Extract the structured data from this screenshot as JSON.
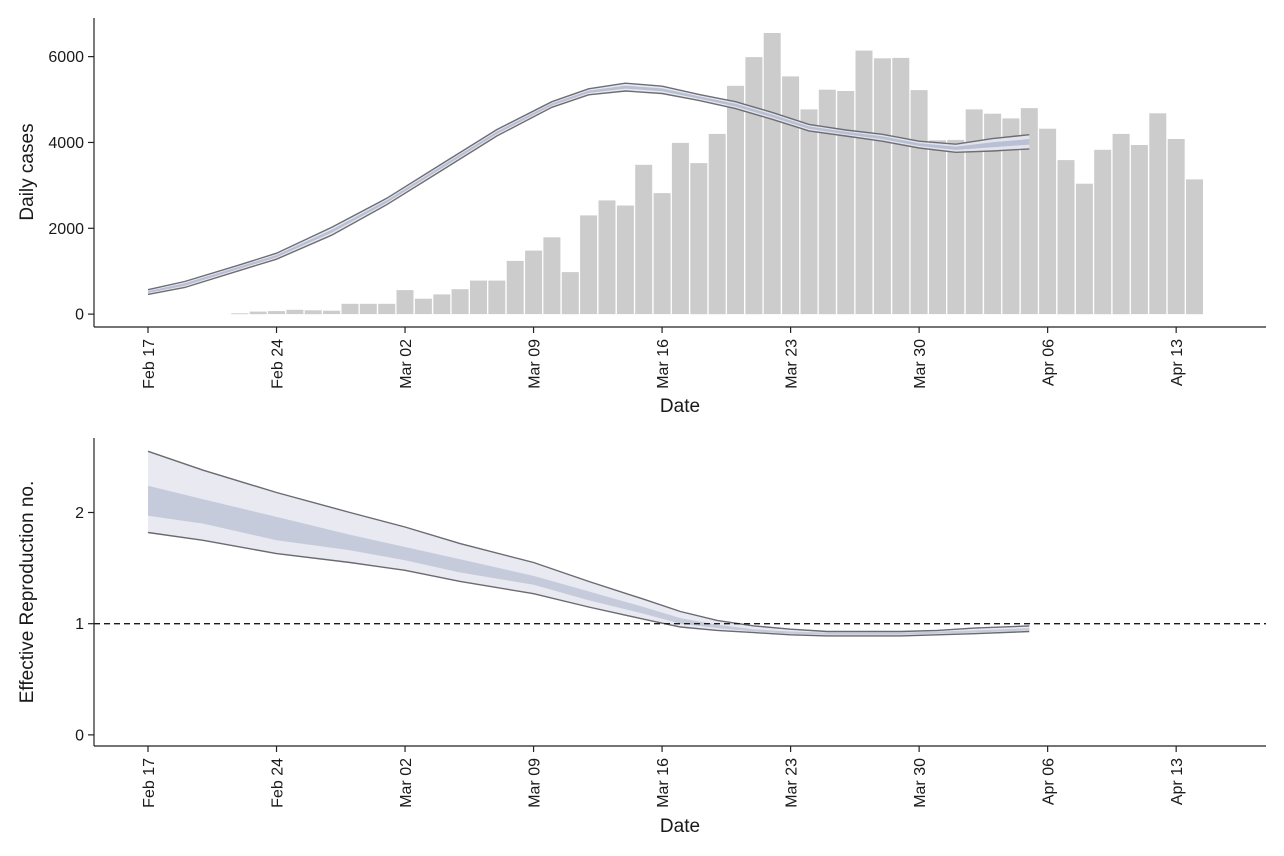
{
  "x_axis": {
    "start_date": "2020-02-17",
    "tick_labels": [
      "Feb 17",
      "Feb 24",
      "Mar 02",
      "Mar 09",
      "Mar 16",
      "Mar 23",
      "Mar 30",
      "Apr 06",
      "Apr 13"
    ]
  },
  "chart_data": [
    {
      "type": "bar",
      "xlabel": "Date",
      "ylabel": "Daily cases",
      "xlim": [
        "2020-02-14",
        "2020-04-18"
      ],
      "ylim": [
        -300,
        6900
      ],
      "yticks": [
        0,
        2000,
        4000,
        6000
      ],
      "grid": false,
      "colors": {
        "bars": "#cccccc",
        "band_outer": "#e5e7ee",
        "band_inner": "#b9bfd4",
        "band_edge": "#6d6d73"
      },
      "bars": {
        "x": [
          "2020-02-22",
          "2020-02-23",
          "2020-02-24",
          "2020-02-25",
          "2020-02-26",
          "2020-02-27",
          "2020-02-28",
          "2020-02-29",
          "2020-03-01",
          "2020-03-02",
          "2020-03-03",
          "2020-03-04",
          "2020-03-05",
          "2020-03-06",
          "2020-03-07",
          "2020-03-08",
          "2020-03-09",
          "2020-03-10",
          "2020-03-11",
          "2020-03-12",
          "2020-03-13",
          "2020-03-14",
          "2020-03-15",
          "2020-03-16",
          "2020-03-17",
          "2020-03-18",
          "2020-03-19",
          "2020-03-20",
          "2020-03-21",
          "2020-03-22",
          "2020-03-23",
          "2020-03-24",
          "2020-03-25",
          "2020-03-26",
          "2020-03-27",
          "2020-03-28",
          "2020-03-29",
          "2020-03-30",
          "2020-03-31",
          "2020-04-01",
          "2020-04-02",
          "2020-04-03",
          "2020-04-04",
          "2020-04-05",
          "2020-04-06",
          "2020-04-07",
          "2020-04-08",
          "2020-04-09",
          "2020-04-10",
          "2020-04-11",
          "2020-04-12",
          "2020-04-13",
          "2020-04-14"
        ],
        "values": [
          20,
          60,
          70,
          100,
          90,
          80,
          240,
          240,
          240,
          560,
          360,
          460,
          580,
          780,
          780,
          1240,
          1480,
          1790,
          980,
          2300,
          2650,
          2530,
          3480,
          2820,
          3990,
          3520,
          4200,
          5320,
          5990,
          6550,
          5540,
          4770,
          5230,
          5200,
          6140,
          5960,
          5970,
          5220,
          4050,
          4060,
          4770,
          4670,
          4560,
          4800,
          4320,
          3590,
          3040,
          3830,
          4200,
          3940,
          4680,
          4080,
          3140
        ]
      },
      "series": [
        {
          "kind": "band",
          "x": [
            "2020-02-17",
            "2020-02-19",
            "2020-02-22",
            "2020-02-24",
            "2020-02-27",
            "2020-03-01",
            "2020-03-04",
            "2020-03-07",
            "2020-03-10",
            "2020-03-12",
            "2020-03-14",
            "2020-03-16",
            "2020-03-18",
            "2020-03-20",
            "2020-03-22",
            "2020-03-24",
            "2020-03-26",
            "2020-03-28",
            "2020-03-30",
            "2020-04-01",
            "2020-04-03",
            "2020-04-05"
          ],
          "upper": [
            570,
            760,
            1150,
            1420,
            2020,
            2700,
            3500,
            4300,
            4950,
            5250,
            5380,
            5310,
            5120,
            4950,
            4700,
            4420,
            4290,
            4190,
            4030,
            3960,
            4090,
            4180
          ],
          "lower": [
            460,
            620,
            1020,
            1280,
            1840,
            2550,
            3350,
            4150,
            4820,
            5110,
            5200,
            5140,
            4980,
            4790,
            4540,
            4270,
            4150,
            4030,
            3870,
            3770,
            3800,
            3850
          ]
        }
      ]
    },
    {
      "type": "area",
      "xlabel": "Date",
      "ylabel": "Effective Reproduction no.",
      "xlim": [
        "2020-02-14",
        "2020-04-18"
      ],
      "ylim": [
        -0.1,
        2.67
      ],
      "yticks": [
        0,
        1,
        2
      ],
      "reference_line": {
        "y": 1,
        "style": "dashed"
      },
      "grid": false,
      "colors": {
        "band_outer": "#e8e9f1",
        "band_inner": "#c6cbdc",
        "band_edge": "#6a6a70",
        "reference_line": "#1a1a1a"
      },
      "series": [
        {
          "kind": "band",
          "x": [
            "2020-02-17",
            "2020-02-20",
            "2020-02-24",
            "2020-02-28",
            "2020-03-02",
            "2020-03-05",
            "2020-03-09",
            "2020-03-12",
            "2020-03-15",
            "2020-03-17",
            "2020-03-19",
            "2020-03-21",
            "2020-03-23",
            "2020-03-25",
            "2020-03-27",
            "2020-03-29",
            "2020-03-31",
            "2020-04-02",
            "2020-04-05"
          ],
          "outer_upper": [
            2.55,
            2.38,
            2.18,
            2.0,
            1.87,
            1.72,
            1.55,
            1.38,
            1.22,
            1.11,
            1.03,
            0.98,
            0.95,
            0.93,
            0.93,
            0.93,
            0.94,
            0.96,
            0.98
          ],
          "outer_lower": [
            1.82,
            1.75,
            1.63,
            1.55,
            1.48,
            1.38,
            1.27,
            1.15,
            1.04,
            0.97,
            0.94,
            0.92,
            0.9,
            0.89,
            0.89,
            0.89,
            0.9,
            0.91,
            0.93
          ],
          "inner_upper": [
            2.24,
            2.12,
            1.96,
            1.8,
            1.69,
            1.58,
            1.43,
            1.29,
            1.15,
            1.05,
            0.99,
            0.95,
            0.93,
            0.92,
            0.92,
            0.92,
            0.93,
            0.94,
            0.96
          ],
          "inner_lower": [
            1.97,
            1.9,
            1.75,
            1.66,
            1.57,
            1.46,
            1.35,
            1.21,
            1.09,
            1.0,
            0.96,
            0.93,
            0.91,
            0.9,
            0.9,
            0.9,
            0.91,
            0.92,
            0.94
          ]
        }
      ]
    }
  ]
}
